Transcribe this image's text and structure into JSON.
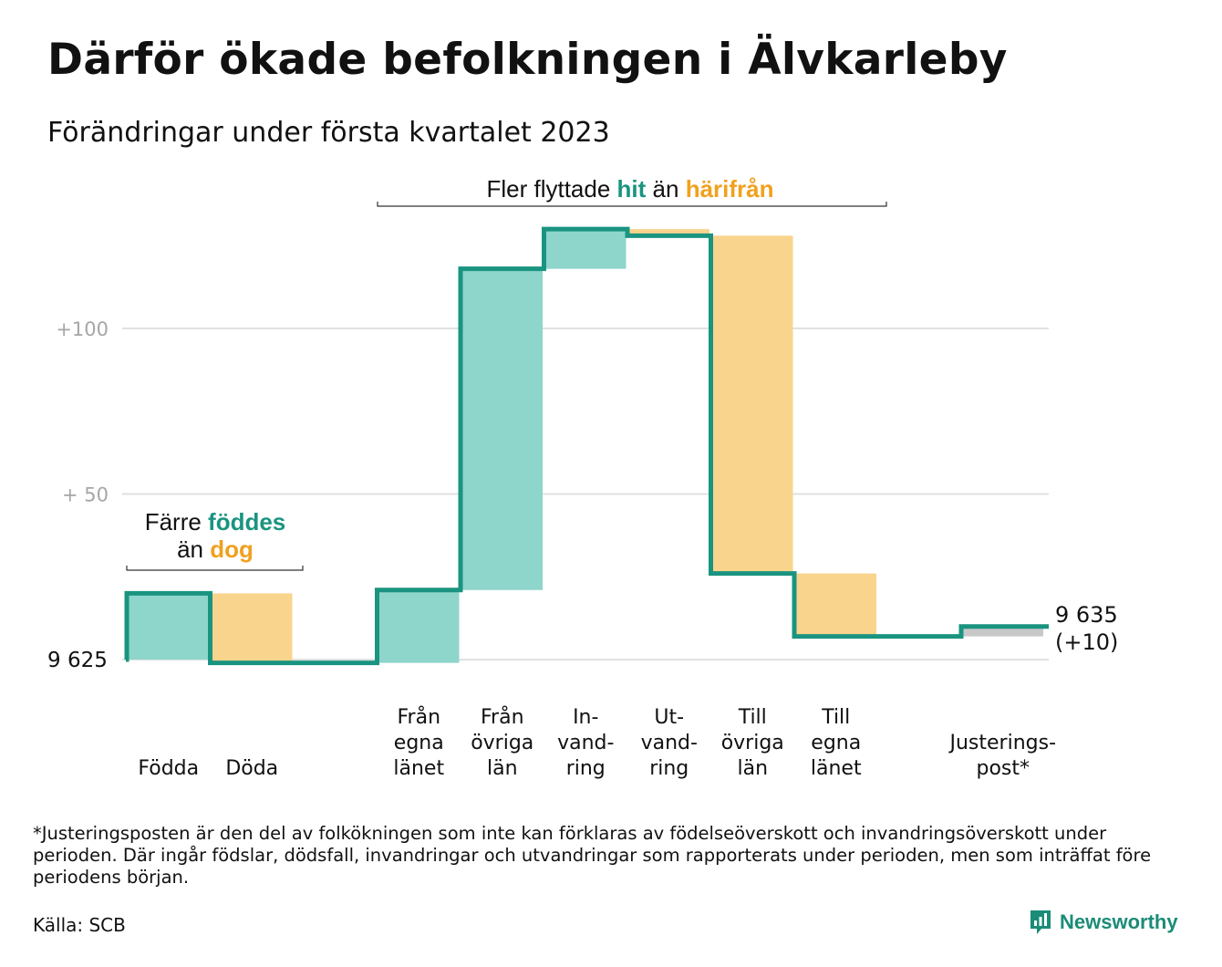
{
  "title": "Därför ökade befolkningen i Älvkarleby",
  "subtitle": "Förändringar under första kvartalet 2023",
  "colors": {
    "in": "#8ed5cc",
    "out": "#f9d48c",
    "adjust": "#c8c8c8",
    "line": "#1a9480",
    "accent_teal": "#1a9480",
    "accent_orange": "#f0a11e",
    "grid": "#e1e1e1",
    "tick": "#a6a6a6"
  },
  "chart_data": {
    "type": "waterfall",
    "start_value": 9625,
    "start_label": "9 625",
    "end_label": "9 635",
    "end_change_label": "(+10)",
    "y_ticks": [
      {
        "value": 100,
        "label": "+100"
      },
      {
        "value": 50,
        "label": "+ 50"
      }
    ],
    "steps": [
      {
        "key": "fodda",
        "lines": [
          "Födda"
        ],
        "change": 20,
        "kind": "in"
      },
      {
        "key": "doda",
        "lines": [
          "Döda"
        ],
        "change": -21,
        "kind": "out"
      },
      {
        "key": "gap",
        "lines": [],
        "change": 0,
        "kind": "none"
      },
      {
        "key": "fran-egna",
        "lines": [
          "Från",
          "egna",
          "länet"
        ],
        "change": 22,
        "kind": "in"
      },
      {
        "key": "fran-ovriga",
        "lines": [
          "Från",
          "övriga",
          "län"
        ],
        "change": 97,
        "kind": "in"
      },
      {
        "key": "invandring",
        "lines": [
          "In-",
          "vand-",
          "ring"
        ],
        "change": 12,
        "kind": "in"
      },
      {
        "key": "utvandring",
        "lines": [
          "Ut-",
          "vand-",
          "ring"
        ],
        "change": -2,
        "kind": "out"
      },
      {
        "key": "till-ovriga",
        "lines": [
          "Till",
          "övriga",
          "län"
        ],
        "change": -102,
        "kind": "out"
      },
      {
        "key": "till-egna",
        "lines": [
          "Till",
          "egna",
          "länet"
        ],
        "change": -19,
        "kind": "out"
      },
      {
        "key": "gap2",
        "lines": [],
        "change": 0,
        "kind": "none"
      },
      {
        "key": "justering",
        "lines": [
          "Justerings-",
          "post*"
        ],
        "change": 3,
        "kind": "adjust"
      }
    ],
    "annotations": [
      {
        "key": "birth",
        "parts": [
          {
            "text": "Färre ",
            "color": "#111111",
            "bold": false
          },
          {
            "text": "föddes",
            "color": "#1a9480",
            "bold": true
          },
          {
            "text": "\n",
            "color": "#111111",
            "bold": false
          },
          {
            "text": "än ",
            "color": "#111111",
            "bold": false
          },
          {
            "text": "dog",
            "color": "#f0a11e",
            "bold": true
          }
        ]
      },
      {
        "key": "migration",
        "parts": [
          {
            "text": "Fler flyttade ",
            "color": "#111111",
            "bold": false
          },
          {
            "text": "hit",
            "color": "#1a9480",
            "bold": true
          },
          {
            "text": " än ",
            "color": "#111111",
            "bold": false
          },
          {
            "text": "härifrån",
            "color": "#f0a11e",
            "bold": true
          }
        ]
      }
    ]
  },
  "footnote": "*Justeringsposten är den del av folkökningen som inte kan förklaras av födelseöverskott och invandringsöverskott under perioden. Där ingår födslar, dödsfall, invandringar och utvandringar som rapporterats under perioden, men som inträffat före periodens början.",
  "source": "Källa: SCB",
  "brand": {
    "name": "Newsworthy",
    "icon": "newsworthy-logo-icon"
  }
}
